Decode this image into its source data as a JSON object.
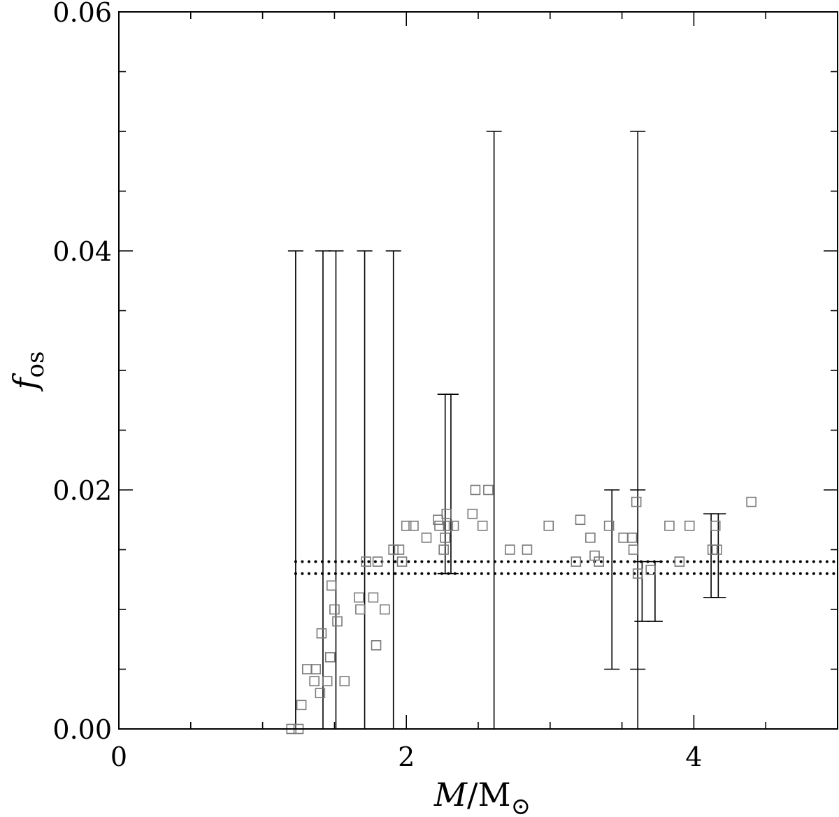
{
  "chart_data": {
    "type": "scatter",
    "xlabel": "M/M⊙",
    "xlabel_parts": {
      "italic": "M",
      "slash": "/",
      "roman": "M",
      "symbol": "⊙"
    },
    "ylabel": "f_os",
    "ylabel_parts": {
      "italic": "f",
      "sub": "os"
    },
    "xlim": [
      0,
      5
    ],
    "ylim": [
      0,
      0.06
    ],
    "x_ticks": [
      0,
      2,
      4
    ],
    "x_tick_labels": [
      "0",
      "2",
      "4"
    ],
    "x_minor_step": 0.5,
    "y_ticks": [
      0.0,
      0.02,
      0.04,
      0.06
    ],
    "y_tick_labels": [
      "0.00",
      "0.02",
      "0.04",
      "0.06"
    ],
    "y_minor_step": 0.005,
    "grid": false,
    "marker_color": "#7a7a7a",
    "line_color": "#000000",
    "points": [
      {
        "x": 1.2,
        "y": 0.0
      },
      {
        "x": 1.25,
        "y": 0.0
      },
      {
        "x": 1.27,
        "y": 0.002
      },
      {
        "x": 1.31,
        "y": 0.005
      },
      {
        "x": 1.36,
        "y": 0.004
      },
      {
        "x": 1.37,
        "y": 0.005
      },
      {
        "x": 1.4,
        "y": 0.003
      },
      {
        "x": 1.41,
        "y": 0.008
      },
      {
        "x": 1.45,
        "y": 0.004
      },
      {
        "x": 1.47,
        "y": 0.006
      },
      {
        "x": 1.48,
        "y": 0.012
      },
      {
        "x": 1.5,
        "y": 0.01
      },
      {
        "x": 1.52,
        "y": 0.009
      },
      {
        "x": 1.57,
        "y": 0.004
      },
      {
        "x": 1.67,
        "y": 0.011
      },
      {
        "x": 1.68,
        "y": 0.01
      },
      {
        "x": 1.72,
        "y": 0.014
      },
      {
        "x": 1.77,
        "y": 0.011
      },
      {
        "x": 1.79,
        "y": 0.007
      },
      {
        "x": 1.8,
        "y": 0.014
      },
      {
        "x": 1.85,
        "y": 0.01
      },
      {
        "x": 1.91,
        "y": 0.015
      },
      {
        "x": 1.95,
        "y": 0.015
      },
      {
        "x": 1.97,
        "y": 0.014
      },
      {
        "x": 2.0,
        "y": 0.017
      },
      {
        "x": 2.05,
        "y": 0.017
      },
      {
        "x": 2.14,
        "y": 0.016
      },
      {
        "x": 2.22,
        "y": 0.0175
      },
      {
        "x": 2.23,
        "y": 0.017
      },
      {
        "x": 2.26,
        "y": 0.015
      },
      {
        "x": 2.27,
        "y": 0.016
      },
      {
        "x": 2.28,
        "y": 0.018
      },
      {
        "x": 2.29,
        "y": 0.017
      },
      {
        "x": 2.33,
        "y": 0.017
      },
      {
        "x": 2.46,
        "y": 0.018
      },
      {
        "x": 2.48,
        "y": 0.02
      },
      {
        "x": 2.53,
        "y": 0.017
      },
      {
        "x": 2.57,
        "y": 0.02
      },
      {
        "x": 2.72,
        "y": 0.015
      },
      {
        "x": 2.84,
        "y": 0.015
      },
      {
        "x": 2.99,
        "y": 0.017
      },
      {
        "x": 3.18,
        "y": 0.014
      },
      {
        "x": 3.21,
        "y": 0.0175
      },
      {
        "x": 3.28,
        "y": 0.016
      },
      {
        "x": 3.31,
        "y": 0.0145
      },
      {
        "x": 3.34,
        "y": 0.014
      },
      {
        "x": 3.41,
        "y": 0.017
      },
      {
        "x": 3.51,
        "y": 0.016
      },
      {
        "x": 3.57,
        "y": 0.016
      },
      {
        "x": 3.58,
        "y": 0.015
      },
      {
        "x": 3.6,
        "y": 0.019
      },
      {
        "x": 3.61,
        "y": 0.013
      },
      {
        "x": 3.7,
        "y": 0.0133
      },
      {
        "x": 3.83,
        "y": 0.017
      },
      {
        "x": 3.9,
        "y": 0.014
      },
      {
        "x": 3.97,
        "y": 0.017
      },
      {
        "x": 4.13,
        "y": 0.015
      },
      {
        "x": 4.15,
        "y": 0.017
      },
      {
        "x": 4.16,
        "y": 0.015
      },
      {
        "x": 4.4,
        "y": 0.019
      }
    ],
    "error_bars": [
      {
        "x": 1.23,
        "low": 0.0,
        "high": 0.04
      },
      {
        "x": 1.42,
        "low": 0.0,
        "high": 0.04
      },
      {
        "x": 1.51,
        "low": 0.0,
        "high": 0.04
      },
      {
        "x": 1.71,
        "low": 0.0,
        "high": 0.04
      },
      {
        "x": 1.91,
        "low": 0.0,
        "high": 0.04
      },
      {
        "x": 2.27,
        "low": 0.013,
        "high": 0.028
      },
      {
        "x": 2.31,
        "low": 0.013,
        "high": 0.028
      },
      {
        "x": 2.61,
        "low": 0.0,
        "high": 0.05
      },
      {
        "x": 3.43,
        "low": 0.005,
        "high": 0.02
      },
      {
        "x": 3.61,
        "low": 0.0,
        "high": 0.05
      },
      {
        "x": 3.61,
        "low": 0.005,
        "high": 0.02
      },
      {
        "x": 3.64,
        "low": 0.009,
        "high": 0.014
      },
      {
        "x": 3.73,
        "low": 0.009,
        "high": 0.014
      },
      {
        "x": 4.12,
        "low": 0.011,
        "high": 0.018
      },
      {
        "x": 4.17,
        "low": 0.011,
        "high": 0.018
      }
    ],
    "reference_lines": [
      {
        "y": 0.014,
        "x_start": 1.23,
        "style": "dotted"
      },
      {
        "y": 0.013,
        "x_start": 1.23,
        "style": "dotted"
      }
    ]
  }
}
